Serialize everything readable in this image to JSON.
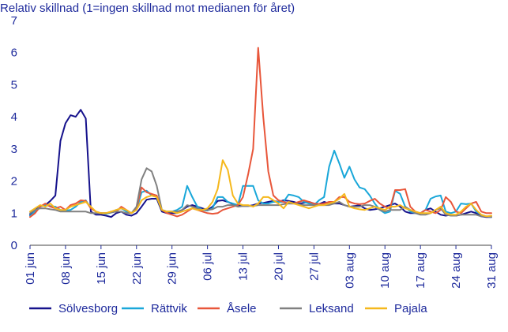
{
  "chart_data": {
    "type": "line",
    "title": "",
    "ylabel": "Relativ skillnad (1=ingen skillnad mot medianen för året)",
    "xlabel": "",
    "ylim": [
      0,
      7
    ],
    "yticks": [
      "0",
      "1",
      "2",
      "3",
      "4",
      "5",
      "6",
      "7"
    ],
    "x_start": "2020-06-01",
    "x_end": "2020-08-31",
    "xtick_labels": [
      "01 jun",
      "08 jun",
      "15 jun",
      "22 jun",
      "29 jun",
      "06 jul",
      "13 jul",
      "20 jul",
      "27 jul",
      "03 aug",
      "10 aug",
      "17 aug",
      "24 aug",
      "31 aug"
    ],
    "grid": false,
    "legend_position": "bottom",
    "colors": {
      "axis_text": "#1e2a9c",
      "tick": "#1e2a9c",
      "zero_line": "#444444"
    },
    "series": [
      {
        "name": "Sölvesborg",
        "color": "#16128c",
        "values": [
          0.95,
          1.1,
          1.2,
          1.25,
          1.38,
          1.55,
          3.25,
          3.8,
          4.05,
          4.0,
          4.22,
          3.95,
          1.05,
          0.95,
          0.95,
          0.92,
          0.88,
          1.0,
          1.05,
          0.95,
          0.92,
          1.0,
          1.2,
          1.42,
          1.45,
          1.45,
          1.05,
          1.0,
          1.0,
          1.0,
          1.1,
          1.2,
          1.25,
          1.2,
          1.15,
          1.1,
          1.2,
          1.38,
          1.4,
          1.35,
          1.28,
          1.25,
          1.22,
          1.22,
          1.25,
          1.3,
          1.32,
          1.35,
          1.38,
          1.35,
          1.4,
          1.38,
          1.35,
          1.3,
          1.32,
          1.35,
          1.3,
          1.28,
          1.35,
          1.3,
          1.3,
          1.3,
          1.25,
          1.2,
          1.22,
          1.25,
          1.15,
          1.1,
          1.12,
          1.15,
          1.2,
          1.25,
          1.3,
          1.2,
          1.05,
          1.0,
          1.0,
          1.0,
          1.1,
          1.15,
          1.05,
          0.95,
          0.92,
          0.95,
          0.92,
          0.95,
          1.0,
          1.05,
          1.0,
          0.9,
          0.88,
          0.88
        ]
      },
      {
        "name": "Rättvik",
        "color": "#19a7d9",
        "values": [
          0.92,
          1.05,
          1.2,
          1.25,
          1.22,
          1.2,
          1.1,
          1.08,
          1.1,
          1.2,
          1.35,
          1.4,
          1.15,
          1.05,
          1.0,
          0.98,
          1.02,
          1.1,
          1.15,
          1.05,
          1.0,
          1.1,
          1.65,
          1.7,
          1.55,
          1.5,
          1.1,
          1.05,
          1.05,
          1.1,
          1.2,
          1.85,
          1.5,
          1.2,
          1.1,
          1.08,
          1.15,
          1.5,
          1.5,
          1.35,
          1.3,
          1.25,
          1.85,
          1.85,
          1.85,
          1.4,
          1.3,
          1.3,
          1.35,
          1.35,
          1.35,
          1.58,
          1.55,
          1.5,
          1.35,
          1.3,
          1.25,
          1.4,
          1.5,
          2.45,
          2.95,
          2.55,
          2.1,
          2.45,
          2.05,
          1.8,
          1.75,
          1.55,
          1.3,
          1.1,
          1.0,
          1.05,
          1.7,
          1.6,
          1.2,
          1.05,
          1.0,
          1.0,
          1.1,
          1.45,
          1.52,
          1.55,
          1.05,
          1.0,
          1.05,
          1.3,
          1.28,
          1.3,
          1.05,
          0.95,
          0.9,
          0.88
        ]
      },
      {
        "name": "Åsele",
        "color": "#e8563a",
        "values": [
          0.88,
          1.0,
          1.2,
          1.3,
          1.2,
          1.15,
          1.2,
          1.1,
          1.25,
          1.3,
          1.4,
          1.38,
          1.15,
          1.05,
          1.0,
          1.0,
          1.05,
          1.05,
          1.2,
          1.1,
          1.0,
          1.15,
          1.8,
          1.65,
          1.6,
          1.55,
          1.1,
          1.0,
          0.95,
          0.9,
          0.95,
          1.05,
          1.15,
          1.1,
          1.05,
          1.0,
          0.98,
          1.0,
          1.1,
          1.15,
          1.2,
          1.25,
          1.5,
          2.2,
          3.0,
          6.15,
          4.0,
          2.3,
          1.55,
          1.4,
          1.35,
          1.3,
          1.3,
          1.35,
          1.4,
          1.35,
          1.3,
          1.28,
          1.3,
          1.35,
          1.35,
          1.5,
          1.5,
          1.35,
          1.3,
          1.28,
          1.3,
          1.38,
          1.45,
          1.3,
          1.2,
          1.15,
          1.72,
          1.72,
          1.75,
          1.2,
          1.05,
          1.0,
          1.1,
          1.05,
          1.0,
          1.1,
          1.5,
          1.35,
          1.05,
          1.0,
          1.15,
          1.3,
          1.35,
          1.05,
          1.0,
          1.0
        ]
      },
      {
        "name": "Leksand",
        "color": "#808080",
        "values": [
          1.0,
          1.1,
          1.15,
          1.15,
          1.12,
          1.1,
          1.05,
          1.05,
          1.05,
          1.05,
          1.05,
          1.05,
          1.0,
          1.0,
          1.0,
          1.0,
          1.02,
          1.05,
          1.05,
          1.0,
          1.0,
          1.2,
          2.05,
          2.4,
          2.3,
          1.85,
          1.1,
          1.05,
          1.05,
          1.05,
          1.1,
          1.25,
          1.2,
          1.15,
          1.1,
          1.1,
          1.12,
          1.2,
          1.2,
          1.25,
          1.25,
          1.2,
          1.22,
          1.22,
          1.22,
          1.25,
          1.25,
          1.25,
          1.25,
          1.25,
          1.28,
          1.3,
          1.3,
          1.28,
          1.25,
          1.25,
          1.25,
          1.25,
          1.25,
          1.25,
          1.3,
          1.35,
          1.25,
          1.2,
          1.2,
          1.2,
          1.25,
          1.25,
          1.2,
          1.1,
          1.05,
          1.1,
          1.1,
          1.1,
          1.2,
          1.1,
          1.0,
          0.95,
          0.95,
          1.0,
          1.1,
          1.15,
          0.95,
          0.92,
          0.92,
          0.95,
          0.95,
          0.95,
          0.95,
          0.9,
          0.9,
          0.88
        ]
      },
      {
        "name": "Pajala",
        "color": "#f5b81c",
        "values": [
          1.05,
          1.15,
          1.25,
          1.2,
          1.3,
          1.15,
          1.1,
          1.1,
          1.2,
          1.25,
          1.3,
          1.35,
          1.2,
          1.05,
          1.0,
          1.0,
          1.05,
          1.1,
          1.15,
          1.1,
          1.0,
          1.1,
          1.4,
          1.5,
          1.55,
          1.5,
          1.1,
          1.05,
          1.05,
          1.0,
          1.05,
          1.1,
          1.15,
          1.1,
          1.1,
          1.15,
          1.35,
          1.75,
          2.65,
          2.35,
          1.55,
          1.3,
          1.25,
          1.25,
          1.2,
          1.3,
          1.5,
          1.5,
          1.4,
          1.3,
          1.15,
          1.35,
          1.3,
          1.25,
          1.2,
          1.15,
          1.2,
          1.25,
          1.25,
          1.3,
          1.35,
          1.45,
          1.6,
          1.2,
          1.15,
          1.12,
          1.1,
          1.15,
          1.2,
          1.15,
          1.1,
          1.2,
          1.2,
          1.25,
          1.15,
          1.1,
          1.05,
          1.0,
          1.0,
          1.0,
          1.1,
          1.2,
          1.0,
          0.95,
          0.95,
          1.05,
          1.2,
          1.3,
          1.1,
          0.95,
          0.9,
          0.92
        ]
      }
    ]
  }
}
